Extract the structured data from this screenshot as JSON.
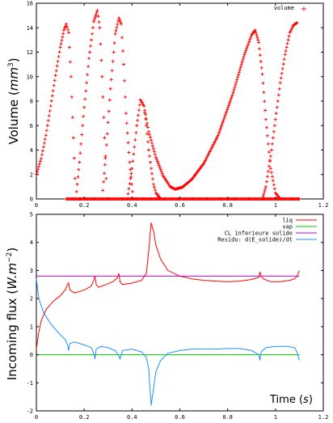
{
  "chart_data": [
    {
      "type": "scatter",
      "ylabel": "Volume (mm^3)",
      "ylabel_parts": {
        "base": "Volume (",
        "unit": "mm",
        "exp": "3",
        "close": ")"
      },
      "xlim": [
        0,
        1.2
      ],
      "ylim": [
        0,
        16
      ],
      "xticks": [
        "0",
        "0.2",
        "0.4",
        "0.6",
        "0.8",
        "1",
        "1.2"
      ],
      "yticks": [
        "0",
        "2",
        "4",
        "6",
        "8",
        "10",
        "12",
        "14",
        "16"
      ],
      "legend_position": "top-right",
      "series": [
        {
          "name": "volume",
          "color": "#ff0000",
          "marker": "+",
          "segments": [
            {
              "x": [
                0.0,
                0.02,
                0.04,
                0.06,
                0.08,
                0.1,
                0.115,
                0.125,
                0.135,
                0.145,
                0.155,
                0.165
              ],
              "y": [
                2.0,
                3.3,
                5.2,
                7.6,
                10.1,
                12.4,
                13.8,
                14.3,
                13.6,
                10.0,
                5.0,
                0.0
              ]
            },
            {
              "x": [
                0.165,
                0.18,
                0.2,
                0.22,
                0.24,
                0.255,
                0.265,
                0.275,
                0.285,
                0.295
              ],
              "y": [
                0.0,
                3.0,
                7.5,
                11.5,
                14.5,
                15.4,
                14.0,
                10.0,
                5.0,
                0.0
              ]
            },
            {
              "x": [
                0.275,
                0.29,
                0.31,
                0.33,
                0.345,
                0.355,
                0.365,
                0.375,
                0.39,
                0.405
              ],
              "y": [
                0.0,
                3.5,
                9.0,
                13.5,
                14.8,
                14.3,
                11.0,
                7.0,
                3.0,
                0.0
              ]
            },
            {
              "x": [
                0.38,
                0.4,
                0.42,
                0.435,
                0.45,
                0.46,
                0.47,
                0.48,
                0.49,
                0.5,
                0.52
              ],
              "y": [
                0.0,
                2.5,
                6.0,
                8.1,
                7.6,
                6.0,
                4.0,
                2.5,
                1.2,
                0.5,
                0.0
              ]
            },
            {
              "x": [
                0.45,
                0.47,
                0.5,
                0.53,
                0.56,
                0.58,
                0.61,
                0.65,
                0.7,
                0.76,
                0.82,
                0.87,
                0.9,
                0.915,
                0.93,
                0.945,
                0.96,
                0.98,
                1.0,
                1.02
              ],
              "y": [
                7.6,
                5.5,
                3.4,
                1.9,
                1.0,
                0.8,
                0.95,
                1.6,
                2.9,
                5.2,
                8.5,
                11.8,
                13.4,
                13.8,
                12.8,
                10.2,
                6.5,
                2.5,
                0.5,
                0.0
              ]
            },
            {
              "x": [
                0.945,
                0.96,
                0.98,
                1.0,
                1.02,
                1.04,
                1.06,
                1.075,
                1.09
              ],
              "y": [
                0.0,
                1.0,
                3.5,
                6.5,
                9.5,
                11.8,
                13.6,
                14.2,
                14.4
              ]
            },
            {
              "x": [
                0.125,
                1.1
              ],
              "y": [
                0.0,
                0.0
              ]
            }
          ]
        }
      ]
    },
    {
      "type": "line",
      "xlabel": "Time (s)",
      "xlabel_parts": {
        "base": "Time (",
        "unit": "s",
        "close": ")"
      },
      "ylabel": "Incoming flux (W.m^-2)",
      "ylabel_parts": {
        "base": "Incoming flux (",
        "unit": "W.m",
        "exp": "−2",
        "close": ")"
      },
      "xlim": [
        0,
        1.2
      ],
      "ylim": [
        -2,
        5
      ],
      "xticks": [
        "0",
        "0.2",
        "0.4",
        "0.6",
        "0.8",
        "1",
        "1.2"
      ],
      "yticks": [
        "-2",
        "-1",
        "0",
        "1",
        "2",
        "3",
        "4",
        "5"
      ],
      "legend_position": "top-right",
      "series": [
        {
          "name": "liq",
          "color": "#ff0000",
          "x": [
            0.0,
            0.01,
            0.02,
            0.04,
            0.07,
            0.1,
            0.12,
            0.13,
            0.135,
            0.14,
            0.16,
            0.2,
            0.23,
            0.24,
            0.245,
            0.25,
            0.26,
            0.29,
            0.32,
            0.34,
            0.345,
            0.35,
            0.36,
            0.4,
            0.44,
            0.46,
            0.47,
            0.48,
            0.49,
            0.5,
            0.52,
            0.55,
            0.6,
            0.65,
            0.7,
            0.75,
            0.8,
            0.85,
            0.9,
            0.93,
            0.935,
            0.94,
            0.95,
            0.98,
            1.02,
            1.06,
            1.08,
            1.09,
            1.1
          ],
          "y": [
            0.2,
            0.8,
            1.2,
            1.6,
            1.9,
            2.1,
            2.3,
            2.5,
            2.55,
            2.3,
            2.2,
            2.3,
            2.45,
            2.65,
            2.8,
            2.5,
            2.4,
            2.5,
            2.6,
            2.75,
            2.9,
            2.6,
            2.5,
            2.55,
            2.65,
            2.9,
            3.7,
            4.7,
            4.4,
            3.9,
            3.4,
            3.0,
            2.8,
            2.7,
            2.65,
            2.62,
            2.6,
            2.62,
            2.68,
            2.75,
            2.95,
            2.8,
            2.7,
            2.6,
            2.6,
            2.65,
            2.7,
            2.8,
            3.0
          ]
        },
        {
          "name": "vap",
          "color": "#00cc00",
          "x": [
            0.0,
            1.1
          ],
          "y": [
            0.0,
            0.0
          ]
        },
        {
          "name": "CL inferieure solide",
          "color": "#cc00cc",
          "x": [
            0.0,
            1.1
          ],
          "y": [
            2.8,
            2.8
          ]
        },
        {
          "name": "Residu: d(E_solide)/dt",
          "color": "#1e90ff",
          "x": [
            0.0,
            0.01,
            0.03,
            0.06,
            0.09,
            0.12,
            0.13,
            0.135,
            0.14,
            0.16,
            0.2,
            0.23,
            0.24,
            0.245,
            0.25,
            0.27,
            0.3,
            0.33,
            0.345,
            0.35,
            0.36,
            0.4,
            0.44,
            0.46,
            0.47,
            0.475,
            0.48,
            0.49,
            0.5,
            0.52,
            0.55,
            0.6,
            0.65,
            0.7,
            0.75,
            0.8,
            0.85,
            0.9,
            0.93,
            0.935,
            0.94,
            0.96,
            1.0,
            1.05,
            1.08,
            1.09,
            1.1
          ],
          "y": [
            2.7,
            2.0,
            1.5,
            1.1,
            0.8,
            0.55,
            0.35,
            0.15,
            0.4,
            0.45,
            0.35,
            0.25,
            0.05,
            -0.15,
            0.2,
            0.3,
            0.25,
            0.15,
            -0.05,
            -0.15,
            0.15,
            0.2,
            0.1,
            -0.1,
            -0.5,
            -1.2,
            -1.8,
            -1.2,
            -0.6,
            -0.2,
            0.05,
            0.15,
            0.2,
            0.2,
            0.2,
            0.22,
            0.22,
            0.15,
            0.0,
            -0.2,
            0.1,
            0.25,
            0.3,
            0.3,
            0.25,
            0.1,
            -0.2
          ]
        }
      ]
    }
  ]
}
